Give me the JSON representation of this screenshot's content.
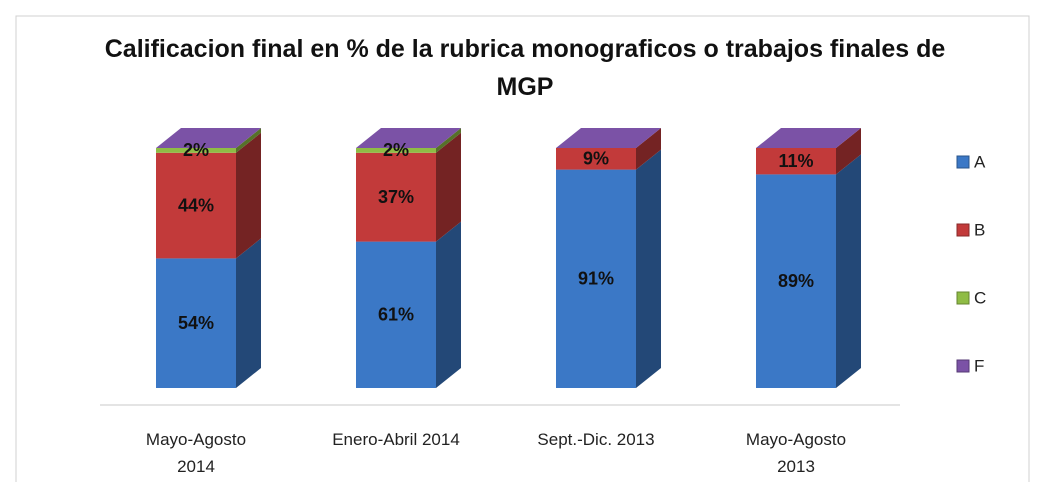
{
  "chart_data": {
    "type": "bar3d_stacked",
    "title": "Calificacion final en % de la rubrica monograficos o trabajos finales de MGP",
    "categories": [
      "Mayo-Agosto\n2014",
      "Enero-Abril 2014",
      "Sept.-Dic. 2013",
      "Mayo-Agosto\n2013"
    ],
    "series": [
      {
        "name": "A",
        "color": "#3b78c6",
        "values": [
          54,
          61,
          91,
          89
        ],
        "value_labels": [
          "54%",
          "61%",
          "91%",
          "89%"
        ]
      },
      {
        "name": "B",
        "color": "#c23a3a",
        "values": [
          44,
          37,
          9,
          11
        ],
        "value_labels": [
          "44%",
          "37%",
          "9%",
          "11%"
        ]
      },
      {
        "name": "C",
        "color": "#8fbc45",
        "values": [
          2,
          2,
          0,
          0
        ],
        "value_labels": [
          "2%",
          "2%",
          null,
          null
        ]
      },
      {
        "name": "F",
        "color": "#7b52a6",
        "values": [
          0,
          0,
          0,
          0
        ]
      }
    ],
    "legend": "right"
  }
}
